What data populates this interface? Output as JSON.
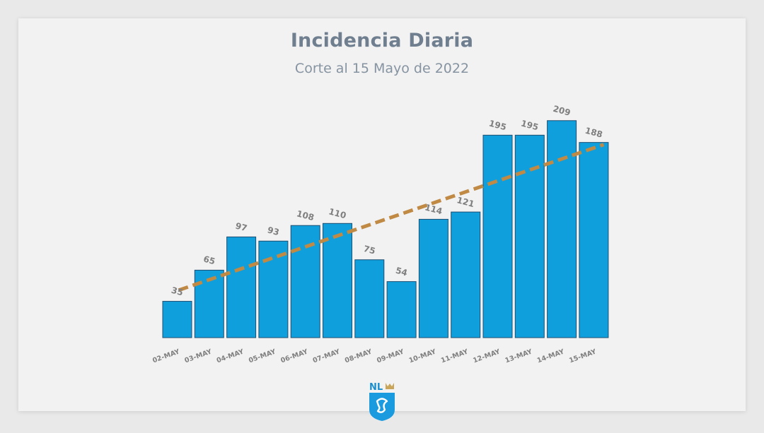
{
  "chart_data": {
    "type": "bar",
    "title": "Incidencia Diaria",
    "subtitle": "Corte al 15 Mayo de 2022",
    "categories": [
      "02-MAY",
      "03-MAY",
      "04-MAY",
      "05-MAY",
      "06-MAY",
      "07-MAY",
      "08-MAY",
      "09-MAY",
      "10-MAY",
      "11-MAY",
      "12-MAY",
      "13-MAY",
      "14-MAY",
      "15-MAY"
    ],
    "values": [
      35,
      65,
      97,
      93,
      108,
      110,
      75,
      54,
      114,
      121,
      195,
      195,
      209,
      188
    ],
    "trendline": {
      "type": "linear",
      "style": "dashed",
      "start_value": 45,
      "end_value": 190
    },
    "grid": false,
    "legend": "none"
  },
  "colors": {
    "bar": "#0f9fdc",
    "bar_edge": "#1f4f72",
    "trend": "#c08a45",
    "label": "#7f7f7f",
    "title": "#6f7f8f"
  },
  "logo": {
    "text": "NL",
    "icon": "nuevo-leon-shield-icon"
  }
}
